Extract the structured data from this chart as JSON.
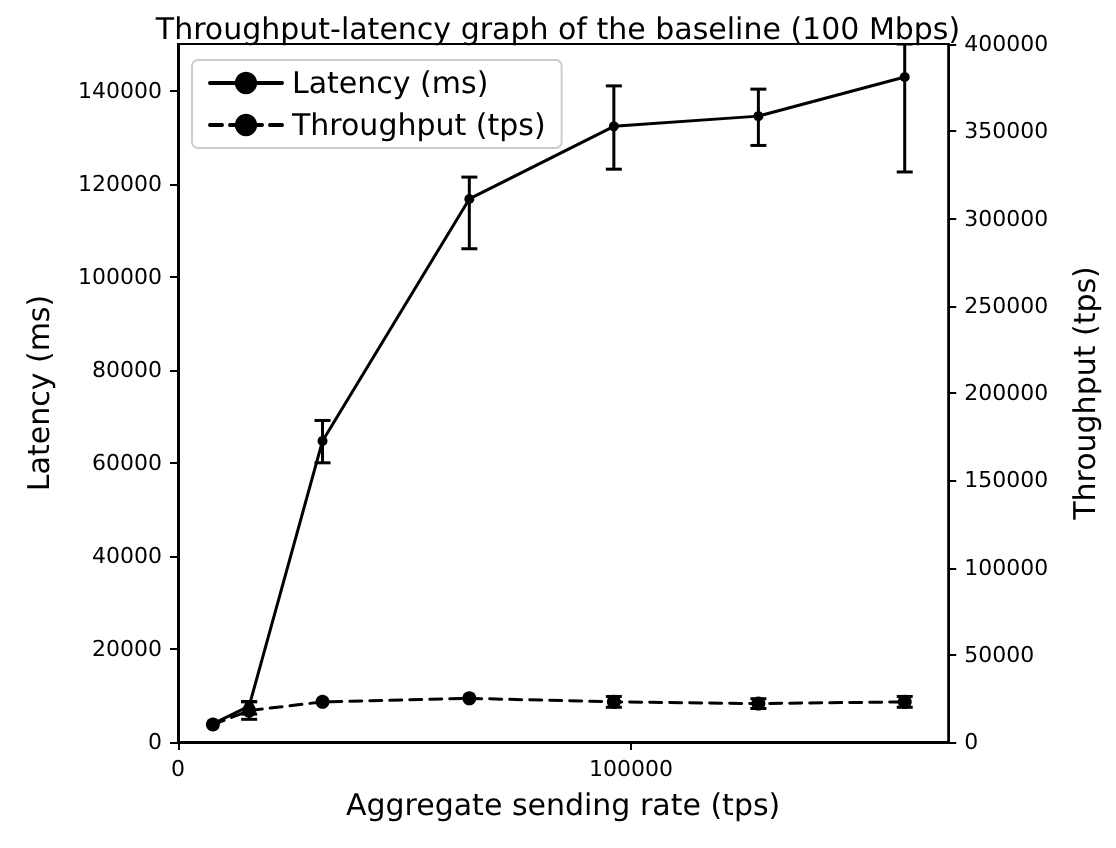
{
  "chart_data": {
    "type": "line",
    "title": "Throughput-latency graph of the baseline (100 Mbps)",
    "xlabel": "Aggregate sending rate (tps)",
    "ylabel": "Latency (ms)",
    "y2label": "Throughput (tps)",
    "x": [
      7700,
      15700,
      31900,
      64300,
      96200,
      128100,
      160400
    ],
    "series": [
      {
        "name": "Latency (ms)",
        "color": "#000000",
        "line_style": "solid",
        "values": [
          3900,
          7700,
          64700,
          116700,
          132300,
          134500,
          142900
        ],
        "errors": [
          null,
          [
            6000,
            8700
          ],
          [
            60000,
            69100
          ],
          [
            106000,
            121400
          ],
          [
            123100,
            141000
          ],
          [
            128200,
            140300
          ],
          [
            122500,
            150000
          ]
        ]
      },
      {
        "name": "Throughput (tps)",
        "color": "#000000",
        "line_style": "dashed",
        "axis": "y2",
        "values": [
          10000,
          18000,
          23000,
          25000,
          23000,
          22000,
          23000
        ],
        "errors": [
          null,
          5000,
          null,
          null,
          3100,
          2800,
          3100
        ]
      }
    ],
    "xlim": [
      0,
      170000
    ],
    "xticks": [
      0,
      100000
    ],
    "ylim": [
      0,
      150000
    ],
    "yticks": [
      0,
      20000,
      40000,
      60000,
      80000,
      100000,
      120000,
      140000
    ],
    "y2lim": [
      0,
      400000
    ],
    "y2ticks": [
      0,
      50000,
      100000,
      150000,
      200000,
      250000,
      300000,
      350000,
      400000
    ],
    "marker": "circle",
    "grid": false,
    "legend": "top left"
  }
}
